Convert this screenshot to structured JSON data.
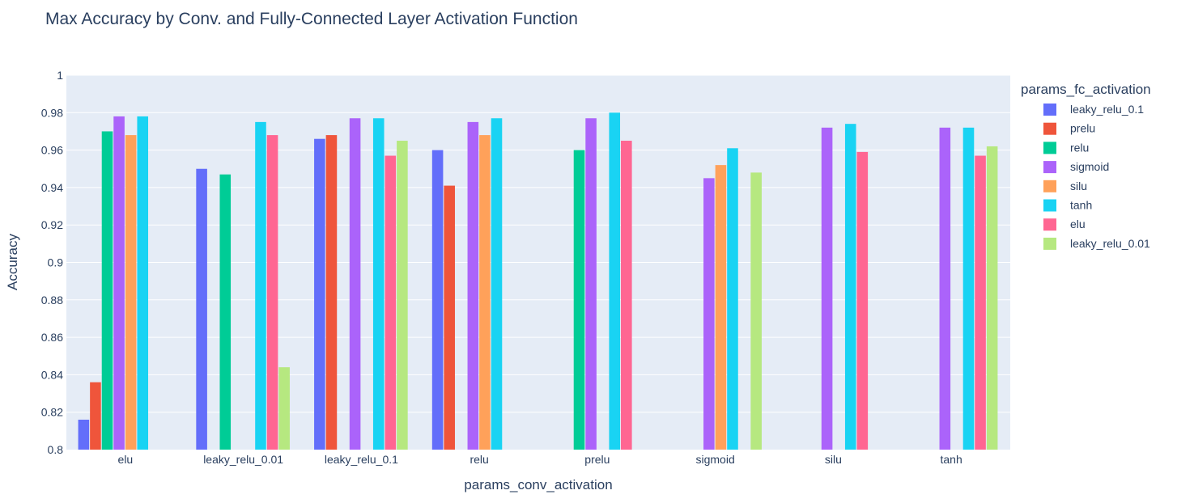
{
  "chart_data": {
    "type": "bar",
    "title": "Max Accuracy by Conv. and Fully-Connected Layer Activation Function",
    "xlabel": "params_conv_activation",
    "ylabel": "Accuracy",
    "ylim": [
      0.8,
      1.0
    ],
    "yticks": [
      "0.8",
      "0.82",
      "0.84",
      "0.86",
      "0.88",
      "0.9",
      "0.92",
      "0.94",
      "0.96",
      "0.98",
      "1"
    ],
    "categories": [
      "elu",
      "leaky_relu_0.01",
      "leaky_relu_0.1",
      "relu",
      "prelu",
      "sigmoid",
      "silu",
      "tanh"
    ],
    "legend_title": "params_fc_activation",
    "legend_position": "right",
    "grid": true,
    "background": "#e5ecf6",
    "series": [
      {
        "name": "leaky_relu_0.1",
        "color": "#636efa",
        "values": [
          0.816,
          0.95,
          0.966,
          0.96,
          null,
          null,
          null,
          null
        ]
      },
      {
        "name": "prelu",
        "color": "#ef553b",
        "values": [
          0.836,
          null,
          0.968,
          0.941,
          null,
          null,
          null,
          null
        ]
      },
      {
        "name": "relu",
        "color": "#00cc96",
        "values": [
          0.97,
          0.947,
          null,
          null,
          0.96,
          null,
          null,
          null
        ]
      },
      {
        "name": "sigmoid",
        "color": "#ab63fa",
        "values": [
          0.978,
          null,
          0.977,
          0.975,
          0.977,
          0.945,
          0.972,
          0.972
        ]
      },
      {
        "name": "silu",
        "color": "#ffa15a",
        "values": [
          0.968,
          null,
          null,
          0.968,
          null,
          0.952,
          null,
          null
        ]
      },
      {
        "name": "tanh",
        "color": "#19d3f3",
        "values": [
          0.978,
          0.975,
          0.977,
          0.977,
          0.98,
          0.961,
          0.974,
          0.972
        ]
      },
      {
        "name": "elu",
        "color": "#ff6692",
        "values": [
          null,
          0.968,
          0.957,
          null,
          0.965,
          null,
          0.959,
          0.957
        ]
      },
      {
        "name": "leaky_relu_0.01",
        "color": "#b6e880",
        "values": [
          null,
          0.844,
          0.965,
          null,
          null,
          0.948,
          null,
          0.962
        ]
      }
    ]
  }
}
